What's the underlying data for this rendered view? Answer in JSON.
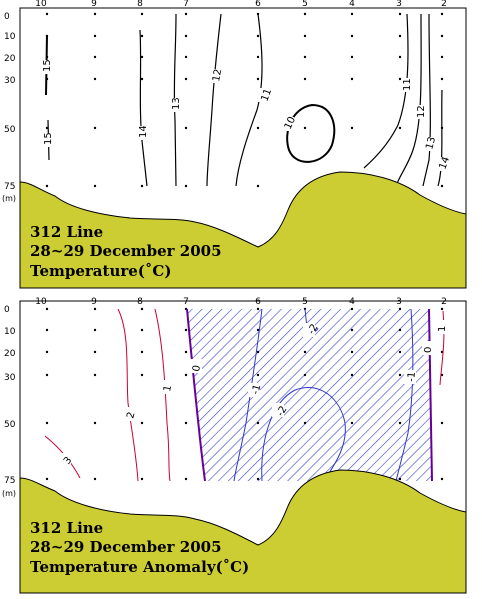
{
  "panels": [
    {
      "id": "temperature",
      "station_labels": [
        "10",
        "9",
        "8",
        "7",
        "6",
        "5",
        "4",
        "3",
        "2"
      ],
      "depth_labels": [
        "0",
        "10",
        "20",
        "30",
        "50",
        "75"
      ],
      "depth_unit": "(m)",
      "title_lines": [
        "312 Line",
        "28~29 December 2005",
        "Temperature(˚C)"
      ],
      "contour_labels": [
        "15",
        "15",
        "14",
        "13",
        "12",
        "11",
        "10",
        "11",
        "12",
        "13",
        "14"
      ],
      "colors": {
        "contour": "#000000",
        "land": "#cccc33"
      }
    },
    {
      "id": "temperature-anomaly",
      "station_labels": [
        "10",
        "9",
        "8",
        "7",
        "6",
        "5",
        "4",
        "3",
        "2"
      ],
      "depth_labels": [
        "0",
        "10",
        "20",
        "30",
        "50",
        "75"
      ],
      "depth_unit": "(m)",
      "title_lines": [
        "312 Line",
        "28~29 December 2005",
        "Temperature Anomaly(˚C)"
      ],
      "contour_labels": [
        "1",
        "2",
        "3",
        "0",
        "-1",
        "-2",
        "-2",
        "-1",
        "0",
        "1"
      ],
      "colors": {
        "positive": "#cc0033",
        "negative": "#3333cc",
        "zero": "#660099",
        "hatch": "#3344cc",
        "land": "#cccc33"
      }
    }
  ]
}
